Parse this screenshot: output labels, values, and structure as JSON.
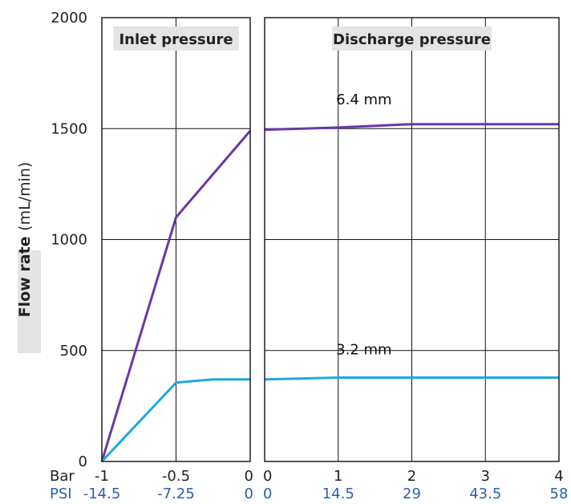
{
  "chart_data": {
    "type": "line",
    "ylabel": "Flow rate",
    "ylabel_unit": "(mL/min)",
    "ylim": [
      0,
      2000
    ],
    "yticks": [
      "0",
      "500",
      "1000",
      "1500",
      "2000"
    ],
    "grid": true,
    "row_labels": {
      "bar": "Bar",
      "psi": "PSI"
    },
    "colors": {
      "6.4 mm": "#6a37a8",
      "3.2 mm": "#1fa8e0",
      "psi_text": "#2a5fb0"
    },
    "panels": [
      {
        "title": "Inlet pressure",
        "xlim": [
          -1,
          0
        ],
        "bar_ticks": [
          "-1",
          "-0.5",
          "0"
        ],
        "psi_ticks": [
          "-14.5",
          "-7.25",
          "0"
        ],
        "series": [
          {
            "name": "6.4 mm",
            "x": [
              -1,
              -0.5,
              0
            ],
            "y": [
              0,
              1100,
              1490
            ]
          },
          {
            "name": "3.2 mm",
            "x": [
              -1,
              -0.5,
              -0.25,
              0
            ],
            "y": [
              0,
              355,
              370,
              370
            ]
          }
        ]
      },
      {
        "title": "Discharge pressure",
        "xlim": [
          0,
          4
        ],
        "bar_ticks": [
          "0",
          "1",
          "2",
          "3",
          "4"
        ],
        "psi_ticks": [
          "0",
          "14.5",
          "29",
          "43.5",
          "58"
        ],
        "series": [
          {
            "name": "6.4 mm",
            "x": [
              0,
              1,
              2,
              3,
              4
            ],
            "y": [
              1495,
              1505,
              1520,
              1520,
              1520
            ]
          },
          {
            "name": "3.2 mm",
            "x": [
              0,
              1,
              2,
              3,
              4
            ],
            "y": [
              370,
              378,
              378,
              378,
              378
            ]
          }
        ]
      }
    ]
  }
}
